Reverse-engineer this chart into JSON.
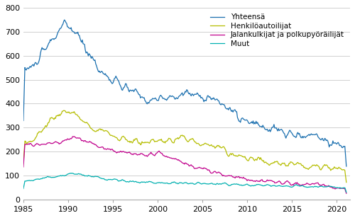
{
  "legend_labels": [
    "Yhteensä",
    "Henkilöautoilijat",
    "Jalankulkijat ja polkupyöräilijät",
    "Muut"
  ],
  "colors": [
    "#1a6faf",
    "#b5bd00",
    "#c0008c",
    "#00b0b0"
  ],
  "linewidth": 0.9,
  "ylim": [
    0,
    800
  ],
  "yticks": [
    0,
    100,
    200,
    300,
    400,
    500,
    600,
    700,
    800
  ],
  "xticks": [
    1985,
    1990,
    1995,
    2000,
    2005,
    2010,
    2015,
    2020
  ],
  "xlim": [
    1985.0,
    2021.5
  ],
  "background_color": "#ffffff",
  "grid_color": "#d0d0d0",
  "legend_fontsize": 7.5,
  "tick_fontsize": 8.0
}
